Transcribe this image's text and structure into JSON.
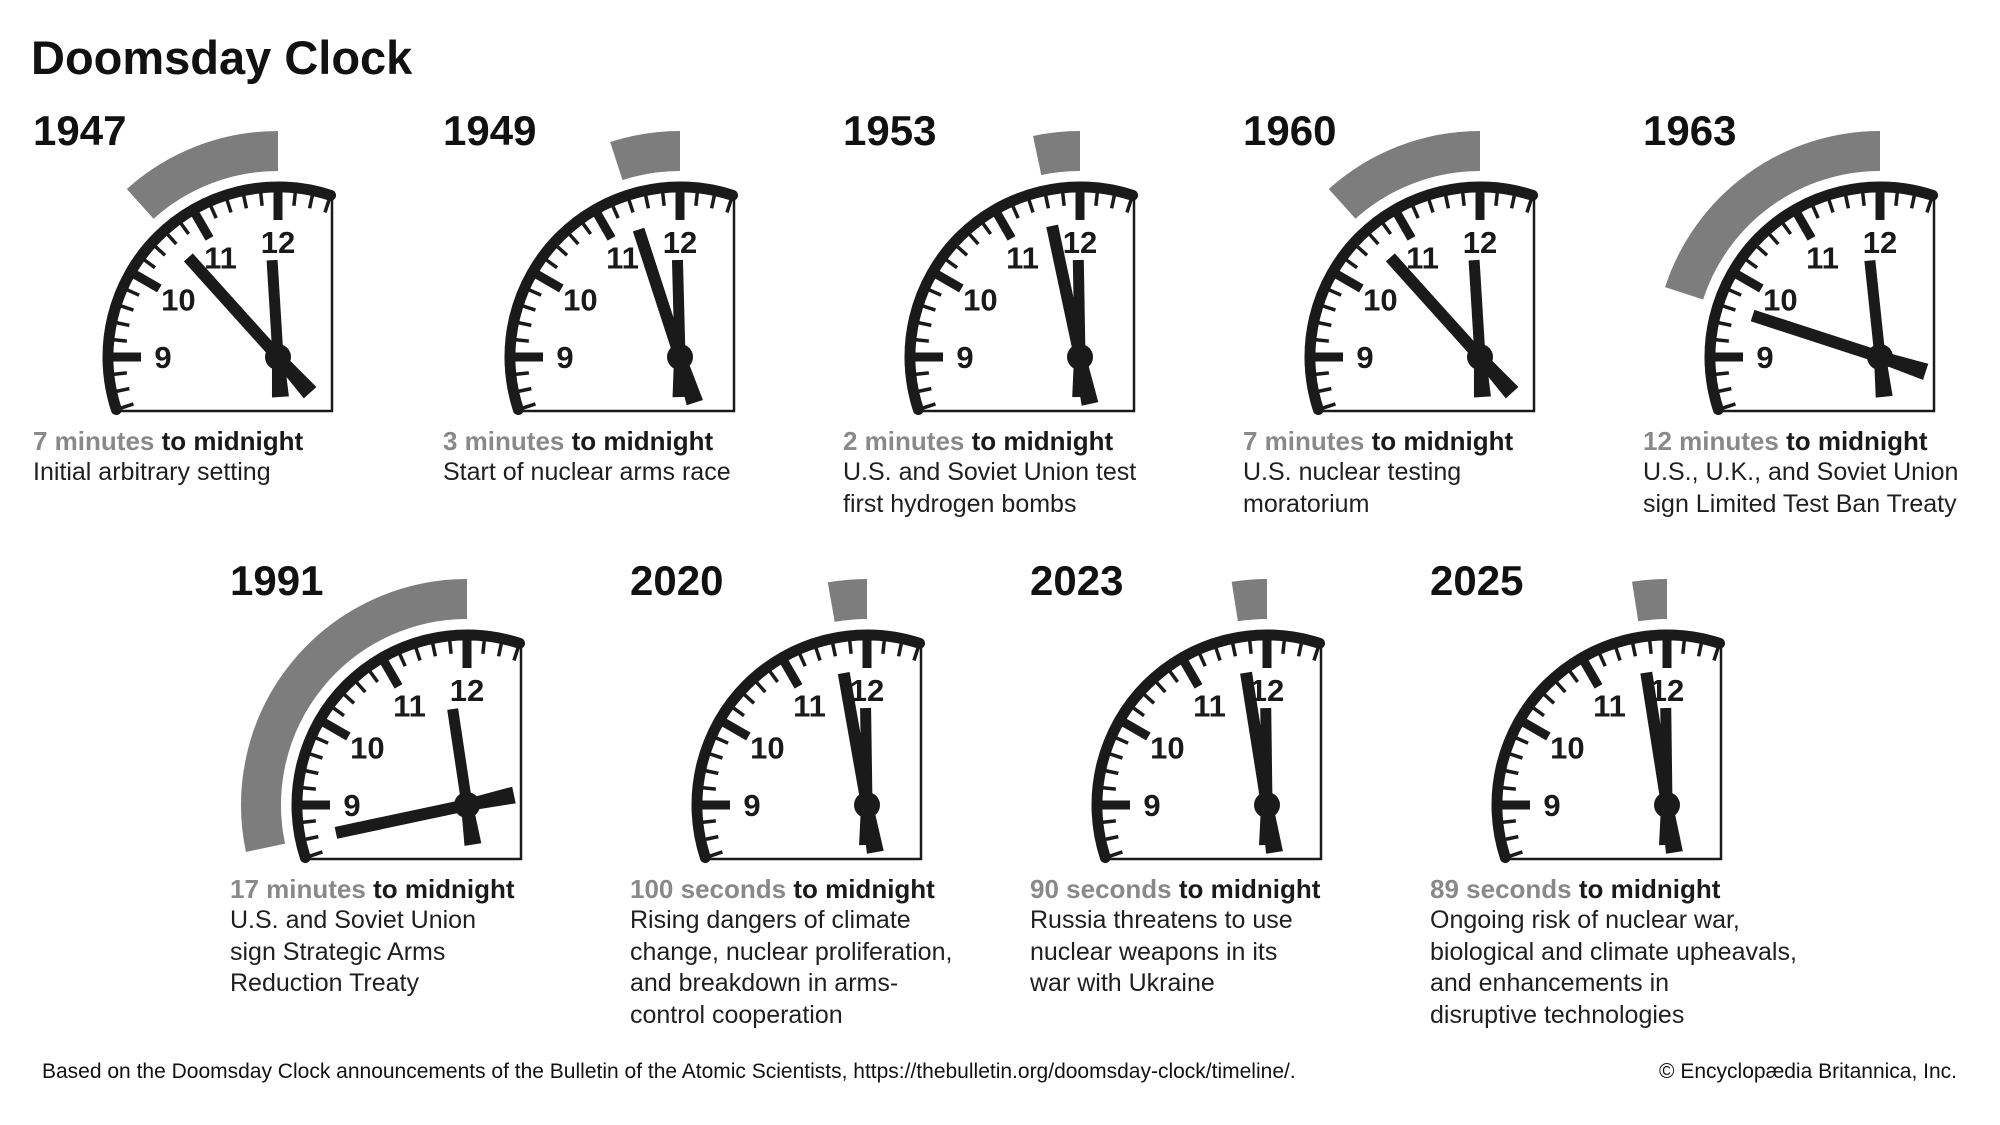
{
  "page_title": "Doomsday Clock",
  "dial_numbers": [
    "12",
    "11",
    "10",
    "9"
  ],
  "colors": {
    "ink": "#1a1a1a",
    "band_gray": "#7d7d7d",
    "lead_gray": "#898989",
    "text": "#1f1f1f",
    "background": "#ffffff"
  },
  "clocks": [
    {
      "year": "1947",
      "minutes": 7,
      "time": "7 minutes",
      "suffix": "to midnight",
      "desc": [
        "Initial arbitrary setting"
      ]
    },
    {
      "year": "1949",
      "minutes": 3,
      "time": "3 minutes",
      "suffix": "to midnight",
      "desc": [
        "Start of nuclear arms race"
      ]
    },
    {
      "year": "1953",
      "minutes": 2,
      "time": "2 minutes",
      "suffix": "to midnight",
      "desc": [
        "U.S. and Soviet Union test",
        "first hydrogen bombs"
      ]
    },
    {
      "year": "1960",
      "minutes": 7,
      "time": "7 minutes",
      "suffix": "to midnight",
      "desc": [
        "U.S. nuclear testing",
        "moratorium"
      ]
    },
    {
      "year": "1963",
      "minutes": 12,
      "time": "12 minutes",
      "suffix": "to midnight",
      "desc": [
        "U.S., U.K., and Soviet Union",
        "sign Limited Test Ban Treaty"
      ]
    },
    {
      "year": "1991",
      "minutes": 17,
      "time": "17 minutes",
      "suffix": "to midnight",
      "desc": [
        "U.S. and Soviet Union",
        "sign Strategic Arms",
        "Reduction Treaty"
      ]
    },
    {
      "year": "2020",
      "minutes": 1.6667,
      "time": "100 seconds",
      "suffix": "to midnight",
      "desc": [
        "Rising dangers of climate",
        "change, nuclear proliferation,",
        "and breakdown in arms-",
        "control cooperation"
      ]
    },
    {
      "year": "2023",
      "minutes": 1.5,
      "time": "90 seconds",
      "suffix": "to midnight",
      "desc": [
        "Russia threatens to use",
        "nuclear weapons in its",
        "war with Ukraine"
      ]
    },
    {
      "year": "2025",
      "minutes": 1.4833,
      "time": "89 seconds",
      "suffix": "to midnight",
      "desc": [
        "Ongoing risk of nuclear war,",
        "biological and climate upheavals,",
        "and enhancements in",
        "disruptive technologies"
      ]
    }
  ],
  "footer": {
    "source": "Based on the Doomsday Clock announcements of the Bulletin of the Atomic Scientists, https://thebulletin.org/doomsday-clock/timeline/.",
    "copyright": "© Encyclopædia Britannica, Inc."
  },
  "chart_data": {
    "type": "table",
    "title": "Doomsday Clock",
    "categories": [
      "1947",
      "1949",
      "1953",
      "1960",
      "1963",
      "1991",
      "2020",
      "2023",
      "2025"
    ],
    "series": [
      {
        "name": "Time to midnight (label)",
        "values": [
          "7 minutes",
          "3 minutes",
          "2 minutes",
          "7 minutes",
          "12 minutes",
          "17 minutes",
          "100 seconds",
          "90 seconds",
          "89 seconds"
        ]
      },
      {
        "name": "Minutes to midnight (numeric)",
        "values": [
          7,
          3,
          2,
          7,
          12,
          17,
          1.6667,
          1.5,
          1.4833
        ]
      }
    ],
    "annotations": [
      "Initial arbitrary setting",
      "Start of nuclear arms race",
      "U.S. and Soviet Union test first hydrogen bombs",
      "U.S. nuclear testing moratorium",
      "U.S., U.K., and Soviet Union sign Limited Test Ban Treaty",
      "U.S. and Soviet Union sign Strategic Arms Reduction Treaty",
      "Rising dangers of climate change, nuclear proliferation, and breakdown in arms-control cooperation",
      "Russia threatens to use nuclear weapons in its war with Ukraine",
      "Ongoing risk of nuclear war, biological and climate upheavals, and enhancements in disruptive technologies"
    ],
    "layout_hints": {
      "small_multiples": true,
      "rows": [
        5,
        4
      ],
      "clock_quarter_shown": "9-to-12"
    }
  }
}
